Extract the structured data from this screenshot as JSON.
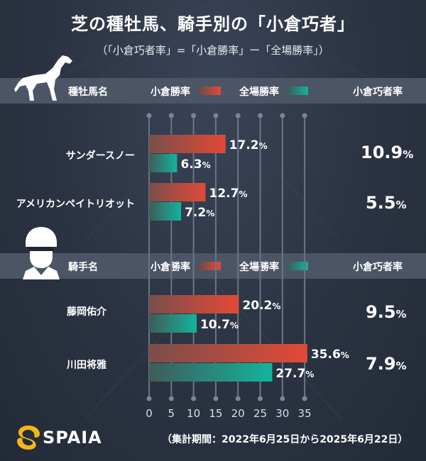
{
  "title": "芝の種牡馬、騎手別の「小倉巧者」",
  "subtitle": "（「小倉巧者率」=「小倉勝率」ー「全場勝率」）",
  "sections": [
    {
      "header": {
        "name_col": "種牡馬名",
        "kokura_label": "小倉勝率",
        "all_label": "全場勝率",
        "diff_col": "小倉巧者率"
      }
    },
    {
      "header": {
        "name_col": "騎手名",
        "kokura_label": "小倉勝率",
        "all_label": "全場勝率",
        "diff_col": "小倉巧者率"
      }
    }
  ],
  "rows": [
    {
      "name": "サンダースノー",
      "kokura": 17.2,
      "all": 6.3,
      "diff": 10.9,
      "kokura_text": "17.2",
      "all_text": "6.3",
      "diff_text": "10.9"
    },
    {
      "name": "アメリカンペイトリオット",
      "kokura": 12.7,
      "all": 7.2,
      "diff": 5.5,
      "kokura_text": "12.7",
      "all_text": "7.2",
      "diff_text": "5.5"
    },
    {
      "name": "藤岡佑介",
      "kokura": 20.2,
      "all": 10.7,
      "diff": 9.5,
      "kokura_text": "20.2",
      "all_text": "10.7",
      "diff_text": "9.5"
    },
    {
      "name": "川田将雅",
      "kokura": 35.6,
      "all": 27.7,
      "diff": 7.9,
      "kokura_text": "35.6",
      "all_text": "27.7",
      "diff_text": "7.9"
    }
  ],
  "percent_sign": "%",
  "logo_text": "SPAIA",
  "footer": "（集計期間：2022年6月25日から2025年6月22日）",
  "colors": {
    "kokura": "#e24a36",
    "all": "#14b39e",
    "band": "#4b5566",
    "background": "#2b3342"
  },
  "chart_data": {
    "type": "bar",
    "orientation": "horizontal",
    "title": "芝の種牡馬、騎手別の「小倉巧者」",
    "subtitle": "（「小倉巧者率」=「小倉勝率」ー「全場勝率」）",
    "categories": [
      "サンダースノー",
      "アメリカンペイトリオット",
      "藤岡佑介",
      "川田将雅"
    ],
    "series": [
      {
        "name": "小倉勝率",
        "values": [
          17.2,
          12.7,
          20.2,
          35.6
        ]
      },
      {
        "name": "全場勝率",
        "values": [
          6.3,
          7.2,
          10.7,
          27.7
        ]
      }
    ],
    "extra_column": {
      "name": "小倉巧者率",
      "values": [
        10.9,
        5.5,
        9.5,
        7.9
      ]
    },
    "xlim": [
      0,
      35
    ],
    "xticks": [
      0,
      5,
      10,
      15,
      20,
      25,
      30,
      35
    ],
    "grid": true,
    "legend": "top"
  }
}
